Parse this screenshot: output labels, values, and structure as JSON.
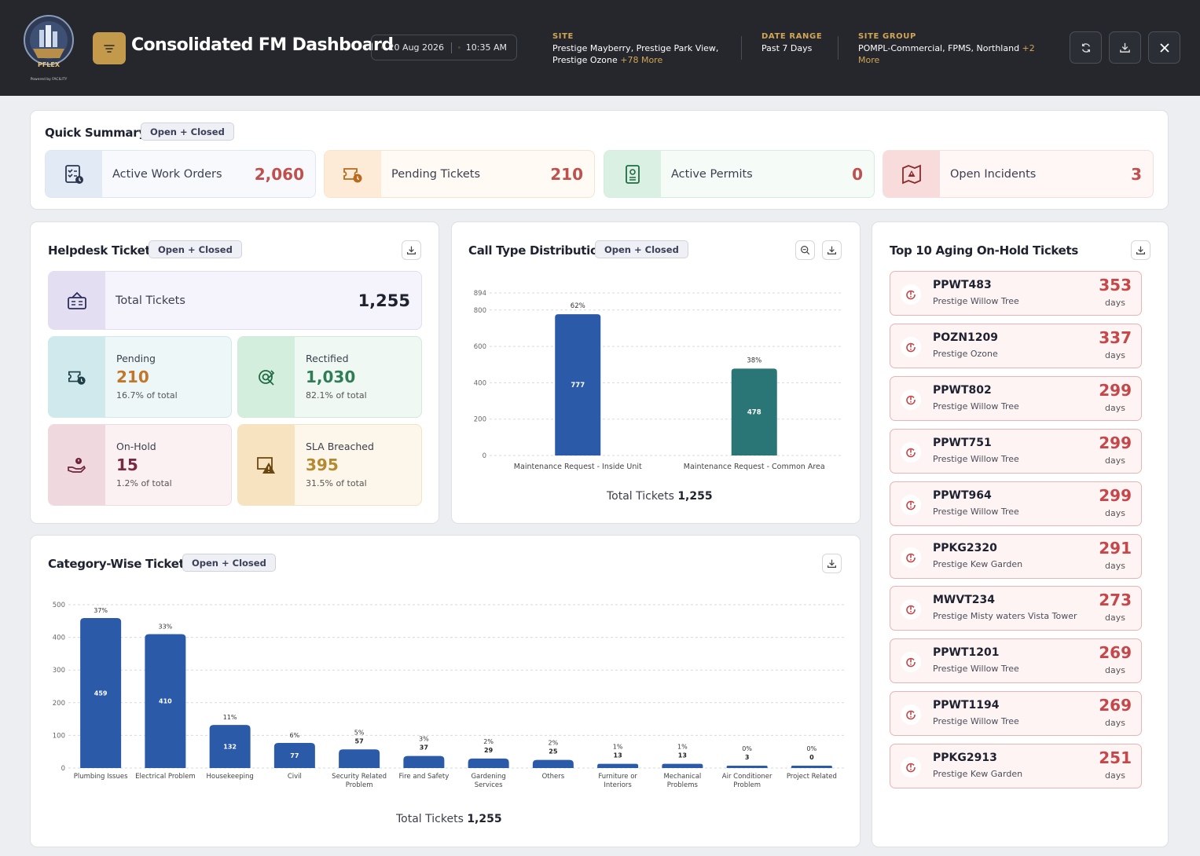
{
  "header": {
    "logo_text": "PFLEX",
    "logo_powered": "Powered by FACILITY",
    "title": "Consolidated FM Dashboard",
    "date": "20 Aug 2026",
    "time": "10:35 AM",
    "site": {
      "label": "SITE",
      "line1": "Prestige Mayberry, Prestige Park View,",
      "line2": "Prestige Ozone",
      "more": "+78 More"
    },
    "date_range": {
      "label": "DATE RANGE",
      "value": "Past 7 Days"
    },
    "site_group": {
      "label": "SITE GROUP",
      "line1": "POMPL-Commercial, FPMS, Northland",
      "more1": "+2",
      "more2": "More"
    }
  },
  "quick_summary": {
    "title": "Quick Summary",
    "filter": "Open + Closed",
    "cards": [
      {
        "label": "Active Work Orders",
        "value": "2,060",
        "icon": "checklist-icon",
        "color": "#c0504d"
      },
      {
        "label": "Pending Tickets",
        "value": "210",
        "icon": "ticket-clock-icon",
        "color": "#c0504d"
      },
      {
        "label": "Active Permits",
        "value": "0",
        "icon": "permit-icon",
        "color": "#c0504d"
      },
      {
        "label": "Open Incidents",
        "value": "3",
        "icon": "incident-map-icon",
        "color": "#c0504d"
      }
    ]
  },
  "helpdesk": {
    "title": "Helpdesk Tickets",
    "filter": "Open + Closed",
    "total_label": "Total Tickets",
    "total_value": "1,255",
    "tiles": [
      {
        "label": "Pending",
        "value": "210",
        "sub": "16.7% of total",
        "color": "#c1762a"
      },
      {
        "label": "Rectified",
        "value": "1,030",
        "sub": "82.1% of total",
        "color": "#2e7d55"
      },
      {
        "label": "On-Hold",
        "value": "15",
        "sub": "1.2% of total",
        "color": "#7a2843"
      },
      {
        "label": "SLA Breached",
        "value": "395",
        "sub": "31.5% of total",
        "color": "#b7892f"
      }
    ]
  },
  "call_type": {
    "title": "Call Type Distribution",
    "filter": "Open + Closed",
    "total_label": "Total Tickets",
    "total_value": "1,255"
  },
  "aging": {
    "title": "Top 10 Aging On-Hold Tickets",
    "days_unit": "days",
    "items": [
      {
        "code": "PPWT483",
        "site": "Prestige Willow Tree",
        "days": "353"
      },
      {
        "code": "POZN1209",
        "site": "Prestige Ozone",
        "days": "337"
      },
      {
        "code": "PPWT802",
        "site": "Prestige Willow Tree",
        "days": "299"
      },
      {
        "code": "PPWT751",
        "site": "Prestige Willow Tree",
        "days": "299"
      },
      {
        "code": "PPWT964",
        "site": "Prestige Willow Tree",
        "days": "299"
      },
      {
        "code": "PPKG2320",
        "site": "Prestige Kew Garden",
        "days": "291"
      },
      {
        "code": "MWVT234",
        "site": "Prestige Misty waters Vista Tower",
        "days": "273"
      },
      {
        "code": "PPWT1201",
        "site": "Prestige Willow Tree",
        "days": "269"
      },
      {
        "code": "PPWT1194",
        "site": "Prestige Willow Tree",
        "days": "269"
      },
      {
        "code": "PPKG2913",
        "site": "Prestige Kew Garden",
        "days": "251"
      }
    ]
  },
  "category": {
    "title": "Category-Wise Tickets",
    "filter": "Open + Closed",
    "total_label": "Total Tickets",
    "total_value": "1,255"
  },
  "chart_data": [
    {
      "type": "bar",
      "categories": [
        "Maintenance Request - Inside Unit",
        "Maintenance Request - Common Area"
      ],
      "values": [
        777,
        478
      ],
      "percent_labels": [
        "62%",
        "38%"
      ],
      "colors": [
        "#2b5aa8",
        "#2a7575"
      ],
      "y_ticks": [
        0,
        200,
        400,
        600,
        800,
        894
      ],
      "ylim": [
        0,
        894
      ],
      "grid": true
    },
    {
      "type": "bar",
      "categories": [
        [
          "Plumbing Issues"
        ],
        [
          "Electrical Problem"
        ],
        [
          "Housekeeping"
        ],
        [
          "Civil"
        ],
        [
          "Security Related",
          "Problem"
        ],
        [
          "Fire and Safety"
        ],
        [
          "Gardening",
          "Services"
        ],
        [
          "Others"
        ],
        [
          "Furniture or",
          "Interiors"
        ],
        [
          "Mechanical",
          "Problems"
        ],
        [
          "Air Conditioner",
          "Problem"
        ],
        [
          "Project Related"
        ]
      ],
      "values": [
        459,
        410,
        132,
        77,
        57,
        37,
        29,
        25,
        13,
        13,
        3,
        0
      ],
      "percent_labels": [
        "37%",
        "33%",
        "11%",
        "6%",
        "5%",
        "3%",
        "2%",
        "2%",
        "1%",
        "1%",
        "0%",
        "0%"
      ],
      "color": "#2b5aa8",
      "y_ticks": [
        0,
        100,
        200,
        300,
        400,
        500
      ],
      "ylim": [
        0,
        500
      ],
      "grid": true
    }
  ]
}
